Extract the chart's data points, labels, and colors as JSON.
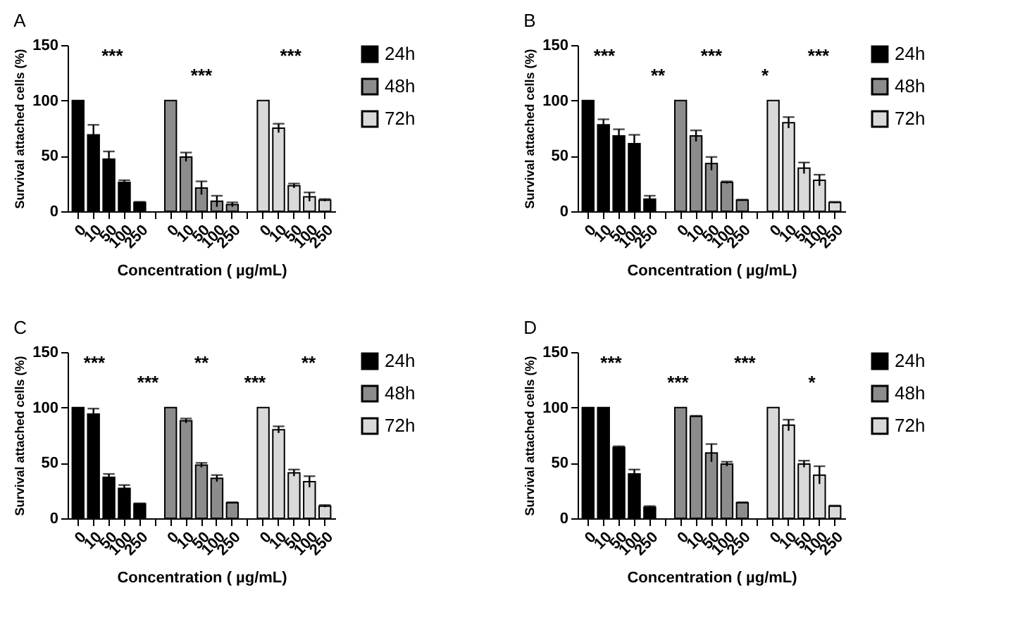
{
  "chart_data": [
    {
      "type": "bar",
      "title": "A",
      "xlabel": "Concentration ( µg/mL)",
      "ylabel": "Survival attached cells (%)",
      "categories": [
        "0",
        "10",
        "50",
        "100",
        "250",
        null,
        "0",
        "10",
        "50",
        "100",
        "250",
        null,
        "0",
        "10",
        "50",
        "100",
        "250"
      ],
      "ylim": [
        0,
        150
      ],
      "yticks": [
        0,
        50,
        100,
        150
      ],
      "grid": false,
      "legend": "right",
      "annotations": [
        "***",
        "***",
        "***"
      ],
      "series": [
        {
          "name": "24h",
          "color": "#000000",
          "values": [
            100,
            69,
            47,
            26,
            8,
            null,
            null,
            null,
            null,
            null,
            null,
            null,
            null,
            null,
            null,
            null,
            null
          ],
          "errors": [
            null,
            9,
            7,
            2,
            0.5,
            null,
            null,
            null,
            null,
            null,
            null,
            null,
            null,
            null,
            null,
            null,
            null
          ]
        },
        {
          "name": "48h",
          "color": "#8c8c8c",
          "values": [
            null,
            null,
            null,
            null,
            null,
            null,
            100,
            49,
            21,
            9,
            6,
            null,
            null,
            null,
            null,
            null,
            null
          ],
          "errors": [
            null,
            null,
            null,
            null,
            null,
            null,
            null,
            4,
            6,
            5,
            2,
            null,
            null,
            null,
            null,
            null,
            null
          ]
        },
        {
          "name": "72h",
          "color": "#d9d9d9",
          "values": [
            null,
            null,
            null,
            null,
            null,
            null,
            null,
            null,
            null,
            null,
            null,
            null,
            100,
            75,
            23,
            13,
            10
          ],
          "errors": [
            null,
            null,
            null,
            null,
            null,
            null,
            null,
            null,
            null,
            null,
            null,
            null,
            null,
            4,
            2,
            4,
            1
          ]
        }
      ]
    },
    {
      "type": "bar",
      "title": "B",
      "xlabel": "Concentration ( µg/mL)",
      "ylabel": "Survival attached cells (%)",
      "categories": [
        "0",
        "10",
        "50",
        "100",
        "250",
        null,
        "0",
        "10",
        "50",
        "100",
        "250",
        null,
        "0",
        "10",
        "50",
        "100",
        "250"
      ],
      "ylim": [
        0,
        150
      ],
      "yticks": [
        0,
        50,
        100,
        150
      ],
      "grid": false,
      "legend": "right",
      "annotations": [
        "***",
        "**",
        "***",
        "*",
        "***"
      ],
      "series": [
        {
          "name": "24h",
          "color": "#000000",
          "values": [
            100,
            78,
            68,
            61,
            11,
            null,
            null,
            null,
            null,
            null,
            null,
            null,
            null,
            null,
            null,
            null,
            null
          ],
          "errors": [
            null,
            5,
            6,
            8,
            3,
            null,
            null,
            null,
            null,
            null,
            null,
            null,
            null,
            null,
            null,
            null,
            null
          ]
        },
        {
          "name": "48h",
          "color": "#8c8c8c",
          "values": [
            null,
            null,
            null,
            null,
            null,
            null,
            100,
            68,
            43,
            26,
            10,
            null,
            null,
            null,
            null,
            null,
            null
          ],
          "errors": [
            null,
            null,
            null,
            null,
            null,
            null,
            null,
            5,
            6,
            1,
            0.5,
            null,
            null,
            null,
            null,
            null,
            null
          ]
        },
        {
          "name": "72h",
          "color": "#d9d9d9",
          "values": [
            null,
            null,
            null,
            null,
            null,
            null,
            null,
            null,
            null,
            null,
            null,
            null,
            100,
            80,
            39,
            28,
            8
          ],
          "errors": [
            null,
            null,
            null,
            null,
            null,
            null,
            null,
            null,
            null,
            null,
            null,
            null,
            null,
            5,
            5,
            5,
            0.5
          ]
        }
      ]
    },
    {
      "type": "bar",
      "title": "C",
      "xlabel": "Concentration ( µg/mL)",
      "ylabel": "Survival attached cells (%)",
      "categories": [
        "0",
        "10",
        "50",
        "100",
        "250",
        null,
        "0",
        "10",
        "50",
        "100",
        "250",
        null,
        "0",
        "10",
        "50",
        "100",
        "250"
      ],
      "ylim": [
        0,
        150
      ],
      "yticks": [
        0,
        50,
        100,
        150
      ],
      "grid": false,
      "legend": "top right",
      "annotations": [
        "***",
        "***",
        "**",
        "***",
        "**"
      ],
      "series": [
        {
          "name": "24h",
          "color": "#000000",
          "values": [
            100,
            94,
            37,
            27,
            13,
            null,
            null,
            null,
            null,
            null,
            null,
            null,
            null,
            null,
            null,
            null,
            null
          ],
          "errors": [
            null,
            5,
            3,
            3,
            0.5,
            null,
            null,
            null,
            null,
            null,
            null,
            null,
            null,
            null,
            null,
            null,
            null
          ]
        },
        {
          "name": "48h",
          "color": "#8c8c8c",
          "values": [
            null,
            null,
            null,
            null,
            null,
            null,
            100,
            88,
            48,
            36,
            14,
            null,
            null,
            null,
            null,
            null,
            null
          ],
          "errors": [
            null,
            null,
            null,
            null,
            null,
            null,
            null,
            2,
            2,
            3,
            0.5,
            null,
            null,
            null,
            null,
            null,
            null
          ]
        },
        {
          "name": "72h",
          "color": "#d9d9d9",
          "values": [
            null,
            null,
            null,
            null,
            null,
            null,
            null,
            null,
            null,
            null,
            null,
            null,
            100,
            80,
            41,
            33,
            11
          ],
          "errors": [
            null,
            null,
            null,
            null,
            null,
            null,
            null,
            null,
            null,
            null,
            null,
            null,
            null,
            3,
            3,
            5,
            1
          ]
        }
      ]
    },
    {
      "type": "bar",
      "title": "D",
      "xlabel": "Concentration ( µg/mL)",
      "ylabel": "Survival attached cells (%)",
      "categories": [
        "0",
        "10",
        "50",
        "100",
        "250",
        null,
        "0",
        "10",
        "50",
        "100",
        "250",
        null,
        "0",
        "10",
        "50",
        "100",
        "250"
      ],
      "ylim": [
        0,
        150
      ],
      "yticks": [
        0,
        50,
        100,
        150
      ],
      "grid": false,
      "legend": "right",
      "annotations": [
        "***",
        "***",
        "***",
        "*"
      ],
      "series": [
        {
          "name": "24h",
          "color": "#000000",
          "values": [
            100,
            100,
            64,
            40,
            10,
            null,
            null,
            null,
            null,
            null,
            null,
            null,
            null,
            null,
            null,
            null,
            null
          ],
          "errors": [
            null,
            null,
            1,
            4,
            1,
            null,
            null,
            null,
            null,
            null,
            null,
            null,
            null,
            null,
            null,
            null,
            null
          ]
        },
        {
          "name": "48h",
          "color": "#8c8c8c",
          "values": [
            null,
            null,
            null,
            null,
            null,
            null,
            100,
            92,
            59,
            49,
            14,
            null,
            null,
            null,
            null,
            null,
            null
          ],
          "errors": [
            null,
            null,
            null,
            null,
            null,
            null,
            null,
            0.5,
            8,
            2,
            0.5,
            null,
            null,
            null,
            null,
            null,
            null
          ]
        },
        {
          "name": "72h",
          "color": "#d9d9d9",
          "values": [
            null,
            null,
            null,
            null,
            null,
            null,
            null,
            null,
            null,
            null,
            null,
            null,
            100,
            84,
            49,
            39,
            11
          ],
          "errors": [
            null,
            null,
            null,
            null,
            null,
            null,
            null,
            null,
            null,
            null,
            null,
            null,
            null,
            5,
            3,
            8,
            0.5
          ]
        }
      ]
    }
  ]
}
